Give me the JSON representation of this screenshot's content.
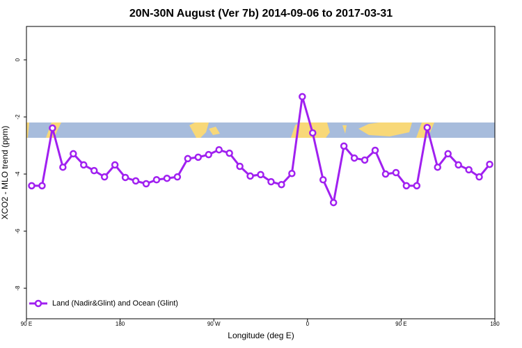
{
  "chart_data": {
    "type": "line",
    "title": "20N-30N August (Ver 7b)   2014-09-06 to 2017-03-31",
    "x_label": "Longitude (deg E)",
    "y_label": "XCO2 - MLO trend (ppm)",
    "xlim": [
      90,
      540
    ],
    "ylim": [
      1.17,
      -9.07
    ],
    "xticks": [
      {
        "value": 90,
        "label": "90 E"
      },
      180,
      {
        "value": 270,
        "label": "90 W"
      },
      {
        "value": 360,
        "label": "0"
      },
      {
        "value": 450,
        "label": "90 E"
      },
      {
        "value": 540,
        "label": "180"
      }
    ],
    "yticks": [
      0,
      -2,
      -4,
      -6,
      -8
    ],
    "legend_position": "bottom-left",
    "x": [
      95,
      105,
      115,
      125,
      135,
      145,
      155,
      165,
      175,
      185,
      195,
      205,
      215,
      225,
      235,
      245,
      255,
      265,
      275,
      285,
      295,
      305,
      315,
      325,
      335,
      345,
      355,
      365,
      375,
      385,
      395,
      405,
      415,
      425,
      435,
      445,
      455,
      465,
      475,
      485,
      495,
      505,
      515,
      525,
      535
    ],
    "series": [
      {
        "name": "Land (Nadir&Glint) and Ocean (Glint)",
        "color": "#a020f0",
        "values": [
          -4.41,
          -4.41,
          -2.39,
          -3.76,
          -3.29,
          -3.68,
          -3.88,
          -4.1,
          -3.68,
          -4.12,
          -4.24,
          -4.34,
          -4.2,
          -4.15,
          -4.1,
          -3.46,
          -3.41,
          -3.32,
          -3.15,
          -3.27,
          -3.73,
          -4.07,
          -4.02,
          -4.27,
          -4.37,
          -3.98,
          -1.29,
          -2.56,
          -4.2,
          -5.0,
          -3.02,
          -3.44,
          -3.51,
          -3.17,
          -4.0,
          -3.95,
          -4.41,
          -4.41,
          -2.37,
          -3.76,
          -3.29,
          -3.68,
          -3.85,
          -4.1,
          -3.66
        ]
      }
    ]
  }
}
